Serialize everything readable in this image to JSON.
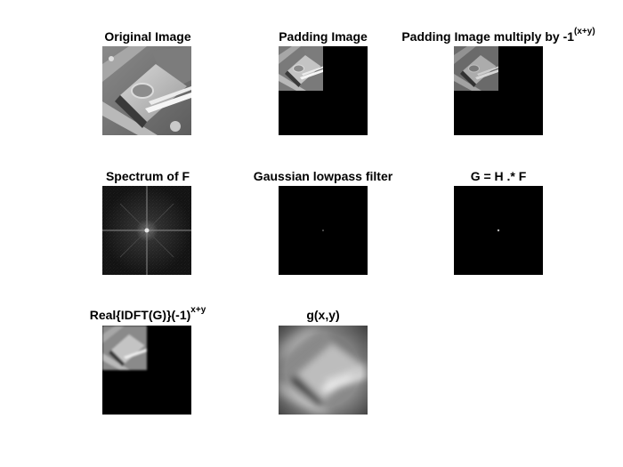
{
  "panels": [
    {
      "title": "Original Image",
      "sup": ""
    },
    {
      "title": "Padding Image",
      "sup": ""
    },
    {
      "title": "Padding Image multiply by -1",
      "sup": "(x+y)"
    },
    {
      "title": "Spectrum of F",
      "sup": ""
    },
    {
      "title": "Gaussian lowpass filter",
      "sup": ""
    },
    {
      "title": "G = H .* F",
      "sup": ""
    },
    {
      "title": "Real{IDFT(G)}(-1)",
      "sup": "x+y"
    },
    {
      "title": "g(x,y)",
      "sup": ""
    }
  ]
}
